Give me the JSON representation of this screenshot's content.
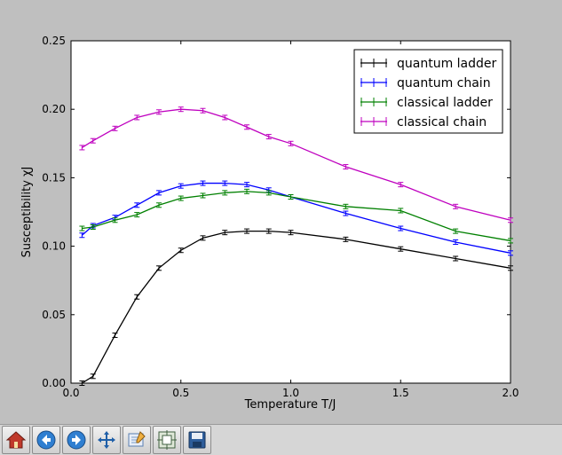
{
  "chart_data": {
    "type": "line",
    "xlabel": "Temperature T/J",
    "ylabel": "Susceptibility χJ",
    "xlim": [
      0.0,
      2.0
    ],
    "ylim": [
      0.0,
      0.25
    ],
    "xticks": [
      "0.0",
      "0.5",
      "1.0",
      "1.5",
      "2.0"
    ],
    "yticks": [
      "0.00",
      "0.05",
      "0.10",
      "0.15",
      "0.20",
      "0.25"
    ],
    "legend_position": "top-right",
    "grid": false,
    "series": [
      {
        "name": "quantum ladder",
        "color": "#000000",
        "x": [
          0.05,
          0.1,
          0.2,
          0.3,
          0.4,
          0.5,
          0.6,
          0.7,
          0.8,
          0.9,
          1.0,
          1.25,
          1.5,
          1.75,
          2.0
        ],
        "y": [
          0.0,
          0.005,
          0.035,
          0.063,
          0.084,
          0.097,
          0.106,
          0.11,
          0.111,
          0.111,
          0.11,
          0.105,
          0.098,
          0.091,
          0.084
        ]
      },
      {
        "name": "quantum chain",
        "color": "#0000ff",
        "x": [
          0.05,
          0.1,
          0.2,
          0.3,
          0.4,
          0.5,
          0.6,
          0.7,
          0.8,
          0.9,
          1.0,
          1.25,
          1.5,
          1.75,
          2.0
        ],
        "y": [
          0.108,
          0.115,
          0.121,
          0.13,
          0.139,
          0.144,
          0.146,
          0.146,
          0.145,
          0.141,
          0.136,
          0.124,
          0.113,
          0.103,
          0.095
        ]
      },
      {
        "name": "classical ladder",
        "color": "#008000",
        "x": [
          0.05,
          0.1,
          0.2,
          0.3,
          0.4,
          0.5,
          0.6,
          0.7,
          0.8,
          0.9,
          1.0,
          1.25,
          1.5,
          1.75,
          2.0
        ],
        "y": [
          0.113,
          0.114,
          0.119,
          0.123,
          0.13,
          0.135,
          0.137,
          0.139,
          0.14,
          0.139,
          0.136,
          0.129,
          0.126,
          0.111,
          0.104
        ]
      },
      {
        "name": "classical chain",
        "color": "#bf00bf",
        "x": [
          0.05,
          0.1,
          0.2,
          0.3,
          0.4,
          0.5,
          0.6,
          0.7,
          0.8,
          0.9,
          1.0,
          1.25,
          1.5,
          1.75,
          2.0
        ],
        "y": [
          0.172,
          0.177,
          0.186,
          0.194,
          0.198,
          0.2,
          0.199,
          0.194,
          0.187,
          0.18,
          0.175,
          0.158,
          0.145,
          0.129,
          0.119
        ]
      }
    ]
  },
  "toolbar": {
    "buttons": [
      {
        "name": "home-button",
        "icon": "home-icon"
      },
      {
        "name": "back-button",
        "icon": "arrow-left-icon"
      },
      {
        "name": "forward-button",
        "icon": "arrow-right-icon"
      },
      {
        "name": "pan-button",
        "icon": "move-icon"
      },
      {
        "name": "zoom-button",
        "icon": "zoom-rect-icon"
      },
      {
        "name": "subplots-button",
        "icon": "subplots-icon"
      },
      {
        "name": "save-button",
        "icon": "floppy-icon"
      }
    ]
  }
}
